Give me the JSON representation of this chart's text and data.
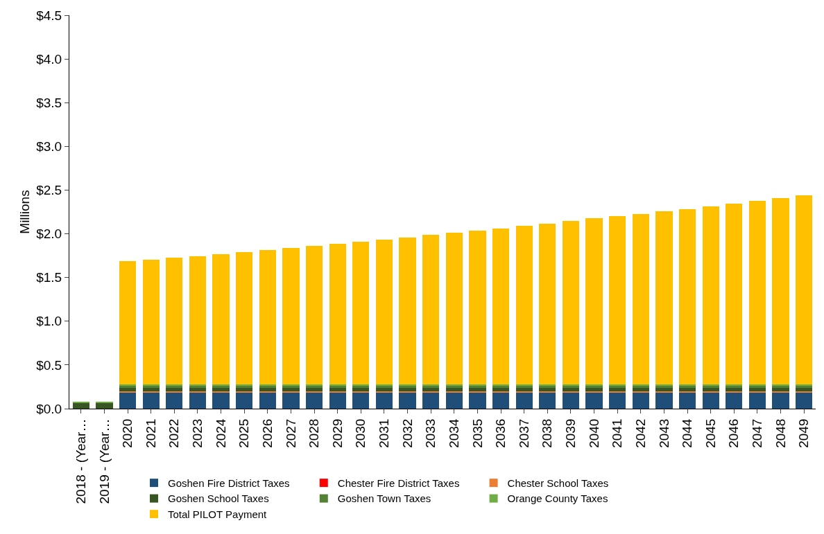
{
  "chart_data": {
    "type": "bar",
    "stacked": true,
    "ylabel": "Millions",
    "categories": [
      "2018 - (Year…",
      "2019 - (Year…",
      "2020",
      "2021",
      "2022",
      "2023",
      "2024",
      "2025",
      "2026",
      "2027",
      "2028",
      "2029",
      "2030",
      "2031",
      "2032",
      "2033",
      "2034",
      "2035",
      "2036",
      "2037",
      "2038",
      "2039",
      "2040",
      "2041",
      "2042",
      "2043",
      "2044",
      "2045",
      "2046",
      "2047",
      "2048",
      "2049"
    ],
    "series": [
      {
        "name": "Goshen Fire District Taxes",
        "color": "#1f4e79",
        "values": [
          0,
          0,
          0.19,
          0.19,
          0.19,
          0.19,
          0.19,
          0.19,
          0.19,
          0.19,
          0.19,
          0.19,
          0.19,
          0.19,
          0.19,
          0.19,
          0.19,
          0.19,
          0.19,
          0.19,
          0.19,
          0.19,
          0.19,
          0.19,
          0.19,
          0.19,
          0.19,
          0.19,
          0.19,
          0.19,
          0.19,
          0.19
        ]
      },
      {
        "name": "Chester Fire District Taxes",
        "color": "#ff0000",
        "values": [
          0,
          0,
          0,
          0,
          0,
          0,
          0,
          0,
          0,
          0,
          0,
          0,
          0,
          0,
          0,
          0,
          0,
          0,
          0,
          0,
          0,
          0,
          0,
          0,
          0,
          0,
          0,
          0,
          0,
          0,
          0,
          0
        ]
      },
      {
        "name": "Chester School Taxes",
        "color": "#ed7d31",
        "values": [
          0,
          0,
          0.01,
          0.01,
          0.01,
          0.01,
          0.01,
          0.01,
          0.01,
          0.01,
          0.01,
          0.01,
          0.01,
          0.01,
          0.01,
          0.01,
          0.01,
          0.01,
          0.01,
          0.01,
          0.01,
          0.01,
          0.01,
          0.01,
          0.01,
          0.01,
          0.01,
          0.01,
          0.01,
          0.01,
          0.01,
          0.01
        ]
      },
      {
        "name": "Goshen School Taxes",
        "color": "#375623",
        "values": [
          0.06,
          0.06,
          0.04,
          0.04,
          0.04,
          0.04,
          0.04,
          0.04,
          0.04,
          0.04,
          0.04,
          0.04,
          0.04,
          0.04,
          0.04,
          0.04,
          0.04,
          0.04,
          0.04,
          0.04,
          0.04,
          0.04,
          0.04,
          0.04,
          0.04,
          0.04,
          0.04,
          0.04,
          0.04,
          0.04,
          0.04,
          0.04
        ]
      },
      {
        "name": "Goshen Town Taxes",
        "color": "#548235",
        "values": [
          0,
          0,
          0.02,
          0.02,
          0.02,
          0.02,
          0.02,
          0.02,
          0.02,
          0.02,
          0.02,
          0.02,
          0.02,
          0.02,
          0.02,
          0.02,
          0.02,
          0.02,
          0.02,
          0.02,
          0.02,
          0.02,
          0.02,
          0.02,
          0.02,
          0.02,
          0.02,
          0.02,
          0.02,
          0.02,
          0.02,
          0.02
        ]
      },
      {
        "name": "Orange County Taxes",
        "color": "#70ad47",
        "values": [
          0.02,
          0.02,
          0.02,
          0.02,
          0.02,
          0.02,
          0.02,
          0.02,
          0.02,
          0.02,
          0.02,
          0.02,
          0.02,
          0.02,
          0.02,
          0.02,
          0.02,
          0.02,
          0.02,
          0.02,
          0.02,
          0.02,
          0.02,
          0.02,
          0.02,
          0.02,
          0.02,
          0.02,
          0.02,
          0.02,
          0.02,
          0.02
        ]
      },
      {
        "name": "Total PILOT Payment",
        "color": "#ffc000",
        "values": [
          0,
          0,
          1.405,
          1.425,
          1.445,
          1.465,
          1.49,
          1.51,
          1.535,
          1.56,
          1.58,
          1.605,
          1.63,
          1.655,
          1.68,
          1.705,
          1.73,
          1.755,
          1.78,
          1.81,
          1.835,
          1.865,
          1.895,
          1.92,
          1.95,
          1.975,
          2.005,
          2.035,
          2.065,
          2.1,
          2.13,
          2.16
        ]
      }
    ],
    "ylim": [
      0,
      4.5
    ],
    "yticks": [
      {
        "value": 0,
        "label": "$0.0"
      },
      {
        "value": 0.5,
        "label": "$0.5"
      },
      {
        "value": 1,
        "label": "$1.0"
      },
      {
        "value": 1.5,
        "label": "$1.5"
      },
      {
        "value": 2,
        "label": "$2.0"
      },
      {
        "value": 2.5,
        "label": "$2.5"
      },
      {
        "value": 3,
        "label": "$3.0"
      },
      {
        "value": 3.5,
        "label": "$3.5"
      },
      {
        "value": 4,
        "label": "$4.0"
      },
      {
        "value": 4.5,
        "label": "$4.5"
      }
    ],
    "grid": false,
    "legend": "bottom"
  }
}
